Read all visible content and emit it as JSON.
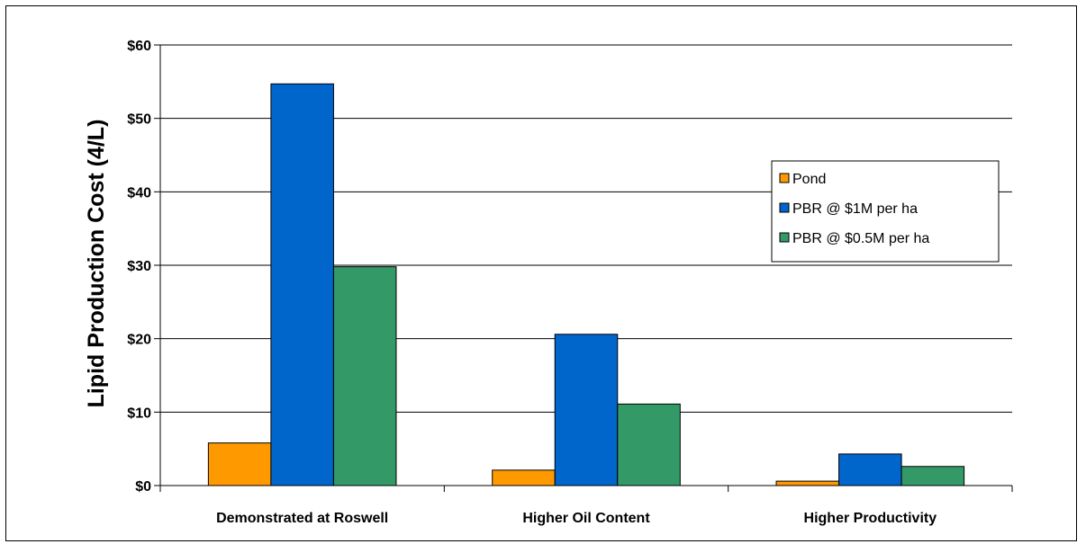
{
  "chart_data": {
    "type": "bar",
    "title": "",
    "xlabel": "",
    "ylabel": "Lipid Production Cost (4/L)",
    "categories": [
      "Demonstrated at Roswell",
      "Higher Oil Content",
      "Higher Productivity"
    ],
    "series": [
      {
        "name": "Pond",
        "values": [
          5.8,
          2.1,
          0.6
        ],
        "color": "#FF9900"
      },
      {
        "name": "PBR @ $1M per ha",
        "values": [
          54.7,
          20.6,
          4.3
        ],
        "color": "#0066CC"
      },
      {
        "name": "PBR @ $0.5M per ha",
        "values": [
          29.8,
          11.1,
          2.6
        ],
        "color": "#339966"
      }
    ],
    "ylim": [
      0,
      60
    ],
    "yticks": [
      0,
      10,
      20,
      30,
      40,
      50,
      60
    ],
    "ytick_labels": [
      "$0",
      "$10",
      "$20",
      "$30",
      "$40",
      "$50",
      "$60"
    ],
    "grid": true,
    "legend_position": "right"
  }
}
